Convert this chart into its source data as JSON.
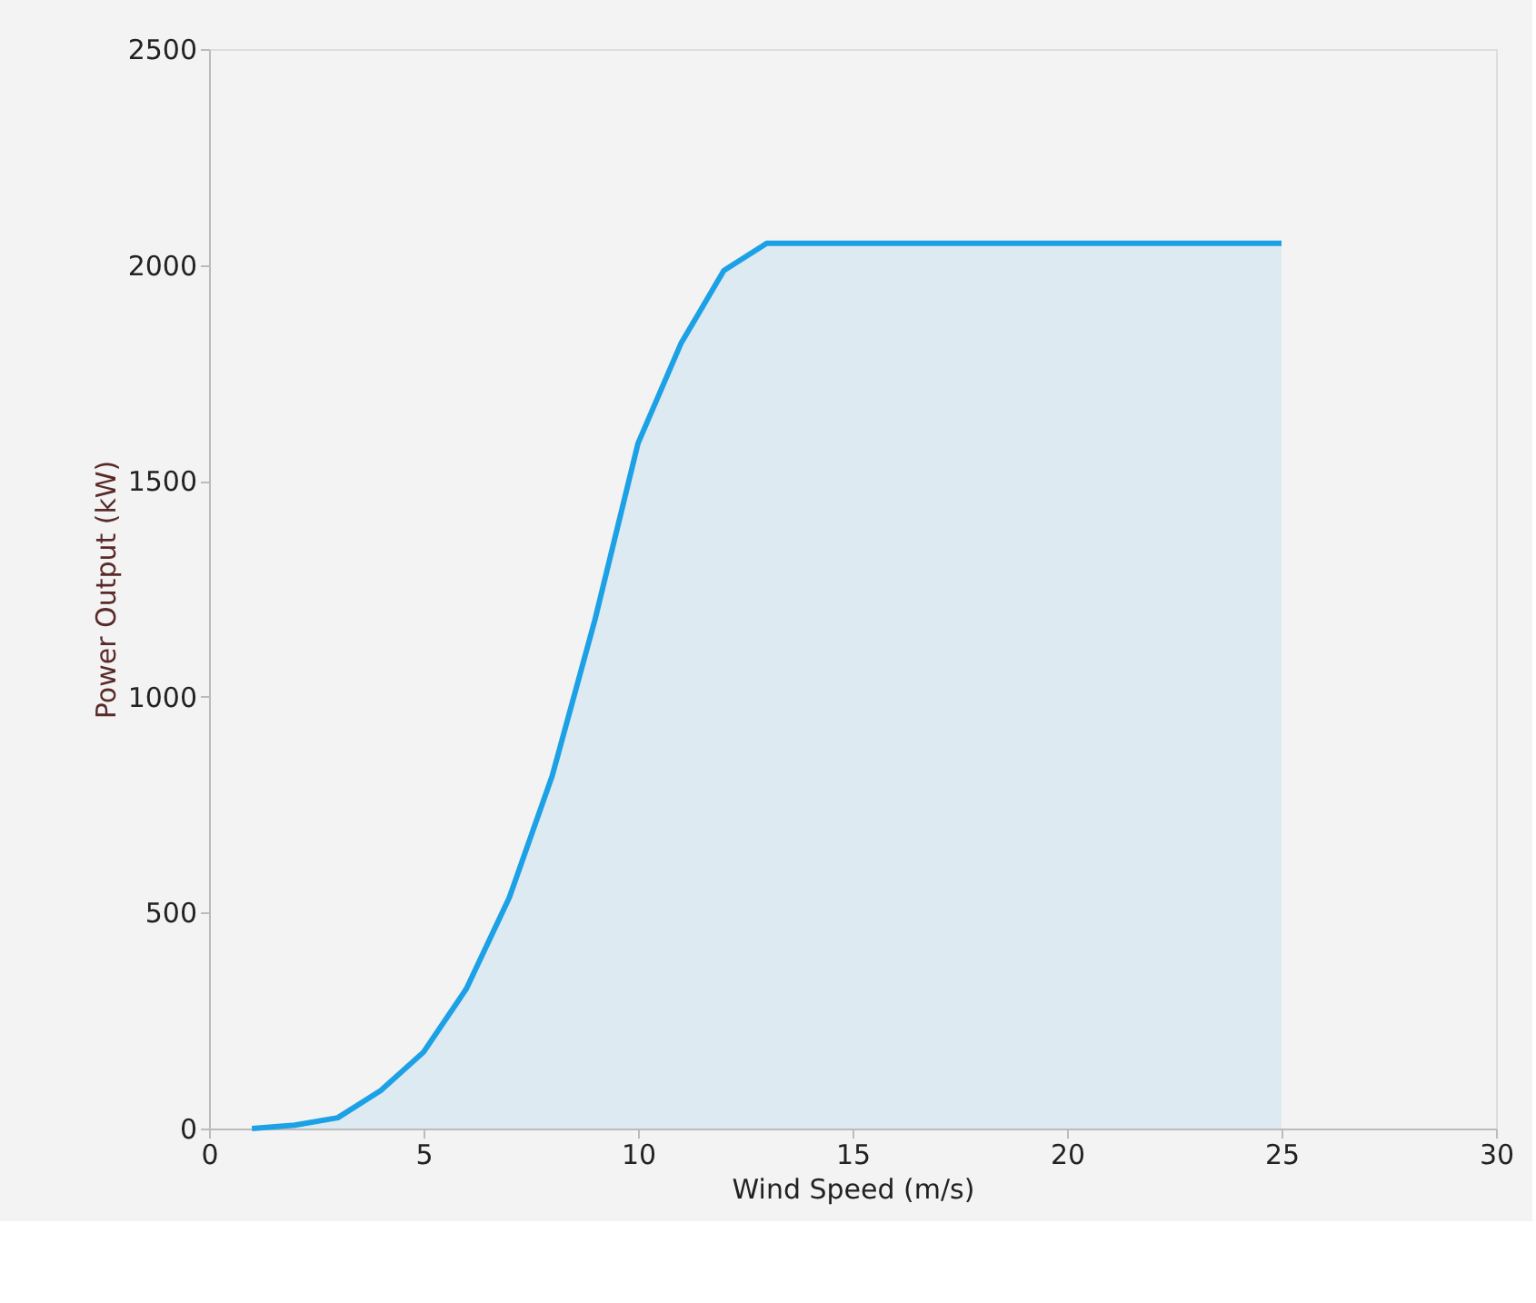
{
  "chart_data": {
    "type": "area",
    "xlabel": "Wind Speed (m/s)",
    "ylabel": "Power Output (kW)",
    "x": [
      1,
      2,
      3,
      4,
      5,
      6,
      7,
      8,
      9,
      10,
      11,
      12,
      13,
      14,
      15,
      16,
      17,
      18,
      19,
      20,
      21,
      22,
      23,
      24,
      25
    ],
    "series": [
      {
        "color": "#1ca1e6",
        "values": [
          0,
          8,
          25,
          88,
          177,
          324,
          535,
          817,
          1180,
          1587,
          1818,
          1987,
          2050,
          2050,
          2050,
          2050,
          2050,
          2050,
          2050,
          2050,
          2050,
          2050,
          2050,
          2050,
          2050
        ]
      }
    ],
    "xlim": [
      0,
      30
    ],
    "xticks": [
      0,
      5,
      10,
      15,
      20,
      25,
      30
    ],
    "ylim": [
      0,
      2500
    ],
    "yticks": [
      0,
      500,
      1000,
      1500,
      2000,
      2500
    ],
    "grid": false
  }
}
